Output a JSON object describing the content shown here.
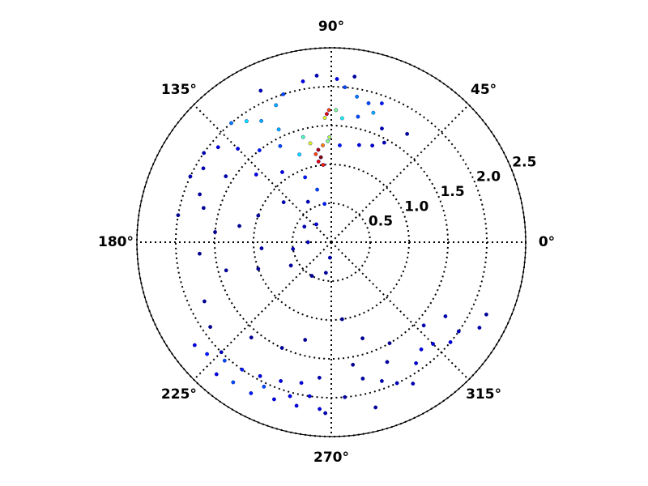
{
  "chart_data": {
    "type": "polar-scatter",
    "colormap": "jet",
    "theta": [
      97,
      98,
      96,
      100,
      95,
      99,
      102,
      92,
      91,
      93,
      91,
      92,
      105,
      110,
      115,
      120,
      125,
      112,
      108,
      130,
      118,
      128,
      135,
      140,
      145,
      150,
      155,
      160,
      148,
      138,
      125,
      112,
      105,
      100,
      120,
      140,
      160,
      170,
      175,
      165,
      185,
      195,
      200,
      185,
      190,
      210,
      240,
      260,
      265,
      180,
      150,
      130,
      100,
      95,
      115,
      170,
      205,
      215,
      88,
      85,
      80,
      75,
      70,
      72,
      78,
      85,
      88,
      66,
      62,
      67,
      74,
      85,
      55,
      82,
      217,
      222,
      228,
      235,
      242,
      250,
      258,
      265,
      229,
      235,
      242,
      250,
      258,
      266,
      245,
      255,
      262,
      268,
      225,
      230,
      245,
      255,
      275,
      280,
      285,
      290,
      295,
      300,
      305,
      310,
      315,
      320,
      325,
      330,
      335,
      300,
      288,
      278,
      318,
      327,
      283,
      295
    ],
    "r": [
      1.1,
      1.2,
      1.0,
      1.15,
      1.25,
      1.05,
      1.3,
      1.65,
      1.7,
      1.6,
      1.35,
      1.3,
      1.4,
      1.2,
      1.6,
      1.8,
      1.9,
      1.9,
      2.0,
      2.0,
      1.4,
      1.5,
      1.7,
      1.9,
      2.0,
      1.9,
      2.0,
      1.8,
      1.6,
      1.3,
      1.1,
      0.9,
      0.7,
      0.5,
      0.6,
      0.8,
      1.0,
      1.2,
      1.5,
      1.7,
      1.7,
      1.4,
      1.0,
      0.9,
      0.5,
      0.6,
      0.5,
      0.4,
      0.2,
      0.3,
      0.4,
      0.3,
      2.1,
      2.15,
      2.15,
      2.0,
      1.8,
      1.9,
      2.1,
      2.0,
      1.9,
      1.85,
      1.9,
      1.75,
      1.65,
      1.6,
      1.7,
      1.6,
      1.45,
      1.35,
      1.3,
      1.25,
      1.7,
      2.15,
      2.2,
      2.15,
      2.05,
      2.0,
      1.95,
      1.9,
      1.85,
      1.75,
      2.25,
      2.2,
      2.2,
      2.15,
      2.15,
      2.15,
      2.05,
      2.05,
      2.0,
      2.2,
      2.0,
      1.6,
      1.5,
      1.3,
      2.0,
      1.6,
      2.2,
      1.9,
      2.0,
      2.1,
      1.9,
      1.8,
      1.85,
      2.0,
      2.0,
      2.2,
      2.2,
      1.5,
      1.3,
      1.0,
      1.6,
      1.75,
      1.8,
      1.7
    ],
    "c": [
      1.0,
      0.95,
      0.85,
      0.8,
      0.75,
      0.9,
      0.6,
      0.9,
      0.8,
      0.6,
      0.55,
      0.5,
      0.45,
      0.35,
      0.3,
      0.3,
      0.35,
      0.3,
      0.2,
      0.25,
      0.2,
      0.15,
      0.1,
      0.1,
      0.05,
      0.05,
      0.05,
      0.03,
      0.05,
      0.1,
      0.1,
      0.15,
      0.2,
      0.15,
      0.05,
      0.05,
      0.03,
      0.02,
      0.02,
      0.02,
      0.02,
      0.02,
      0.02,
      0.03,
      0.05,
      0.03,
      0.02,
      0.03,
      0.05,
      0.05,
      0.05,
      0.08,
      0.1,
      0.05,
      0.05,
      0.02,
      0.02,
      0.02,
      0.1,
      0.2,
      0.25,
      0.2,
      0.15,
      0.3,
      0.2,
      0.4,
      0.5,
      0.05,
      0.05,
      0.08,
      0.1,
      0.15,
      0.03,
      0.03,
      0.1,
      0.15,
      0.2,
      0.15,
      0.1,
      0.1,
      0.1,
      0.05,
      0.1,
      0.2,
      0.15,
      0.1,
      0.1,
      0.1,
      0.2,
      0.1,
      0.1,
      0.05,
      0.05,
      0.02,
      0.02,
      0.02,
      0.03,
      0.02,
      0.03,
      0.05,
      0.05,
      0.05,
      0.08,
      0.1,
      0.1,
      0.1,
      0.05,
      0.05,
      0.03,
      0.02,
      0.02,
      0.02,
      0.05,
      0.05,
      0.03,
      0.03
    ],
    "rlim": [
      0,
      2.5
    ],
    "rticks": [
      0.5,
      {
        "value": 1.0,
        "label": "1.0"
      },
      1.5,
      {
        "value": 2.0,
        "label": "2.0"
      },
      2.5
    ],
    "thetaticks": [
      {
        "value": 0,
        "label": "0°"
      },
      {
        "value": 45,
        "label": "45°"
      },
      {
        "value": 90,
        "label": "90°"
      },
      {
        "value": 135,
        "label": "135°"
      },
      {
        "value": 180,
        "label": "180°"
      },
      {
        "value": 225,
        "label": "225°"
      },
      {
        "value": 270,
        "label": "270°"
      },
      {
        "value": 315,
        "label": "315°"
      }
    ],
    "grid": true
  }
}
